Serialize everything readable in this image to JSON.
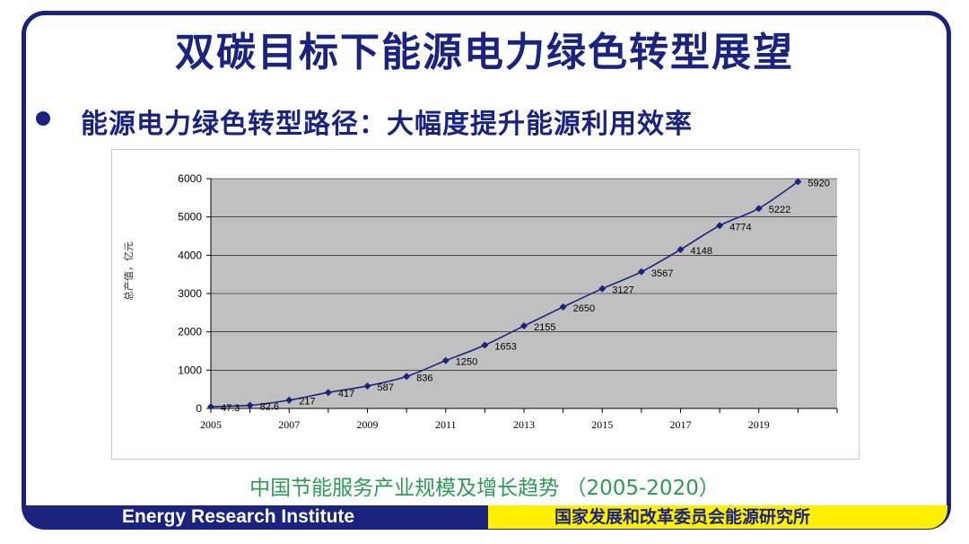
{
  "slide": {
    "title": "双碳目标下能源电力绿色转型展望",
    "subtitle": "能源电力绿色转型路径：大幅度提升能源利用效率",
    "caption": "中国节能服务产业规模及增长趋势 （2005-2020）",
    "footer_left": "Energy Research Institute",
    "footer_right": "国家发展和改革委员会能源研究所",
    "colors": {
      "brand_navy": "#1a237e",
      "footer_yellow": "#ffef00",
      "caption_green": "#2e9a55",
      "plot_bg": "#c0c0c0"
    }
  },
  "chart_data": {
    "type": "line",
    "ylabel": "总产值，亿元",
    "xlabel": "",
    "ylim": [
      0,
      6000
    ],
    "yticks": [
      0,
      1000,
      2000,
      3000,
      4000,
      5000,
      6000
    ],
    "xlim": [
      2005,
      2021
    ],
    "xticks": [
      "2005",
      "2007",
      "2009",
      "2011",
      "2013",
      "2015",
      "2017",
      "2019"
    ],
    "grid": true,
    "series": [
      {
        "x": [
          2005,
          2006,
          2007,
          2008,
          2009,
          2010,
          2011,
          2012,
          2013,
          2014,
          2015,
          2016,
          2017,
          2018,
          2019,
          2020
        ],
        "values": [
          47.3,
          82.6,
          217,
          417,
          587,
          836,
          1250,
          1653,
          2155,
          2650,
          3127,
          3567,
          4148,
          4774,
          5222,
          5920
        ],
        "labels": [
          "47.3",
          "82.6",
          "217",
          "417",
          "587",
          "836",
          "1250",
          "1653",
          "2155",
          "2650",
          "3127",
          "3567",
          "4148",
          "4774",
          "5222",
          "5920"
        ],
        "color": "#1a237e"
      }
    ]
  }
}
